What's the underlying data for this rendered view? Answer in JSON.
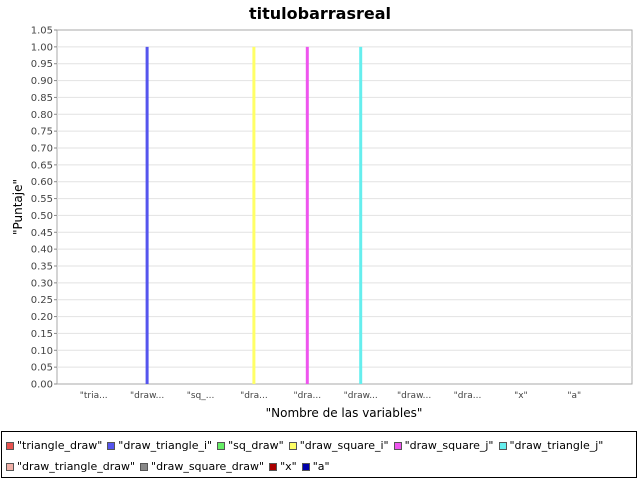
{
  "chart_data": {
    "type": "bar",
    "title": "titulobarrasreal",
    "xlabel": "\"Nombre de las variables\"",
    "ylabel": "\"Puntaje\"",
    "ylim": [
      0,
      1.05
    ],
    "ytick_step": 0.05,
    "grid": true,
    "legend_position": "bottom",
    "categories": [
      "\"tria...",
      "\"draw...",
      "\"sq_...",
      "\"dra...",
      "\"dra...",
      "\"draw...",
      "\"draw...",
      "\"dra...",
      "\"x\"",
      "\"a\""
    ],
    "series": [
      {
        "name": "\"triangle_draw\"",
        "color": "#e8524f",
        "values": [
          0,
          0,
          0,
          0,
          0,
          0,
          0,
          0,
          0,
          0
        ]
      },
      {
        "name": "\"draw_triangle_i\"",
        "color": "#5555ee",
        "values": [
          0,
          1.0,
          0,
          0,
          0,
          0,
          0,
          0,
          0,
          0
        ]
      },
      {
        "name": "\"sq_draw\"",
        "color": "#66ee66",
        "values": [
          0,
          0,
          0,
          0,
          0,
          0,
          0,
          0,
          0,
          0
        ]
      },
      {
        "name": "\"draw_square_i\"",
        "color": "#ffff66",
        "values": [
          0,
          0,
          0,
          1.0,
          0,
          0,
          0,
          0,
          0,
          0
        ]
      },
      {
        "name": "\"draw_square_j\"",
        "color": "#ee55ee",
        "values": [
          0,
          0,
          0,
          0,
          1.0,
          0,
          0,
          0,
          0,
          0
        ]
      },
      {
        "name": "\"draw_triangle_j\"",
        "color": "#66eeee",
        "values": [
          0,
          0,
          0,
          0,
          0,
          1.0,
          0,
          0,
          0,
          0
        ]
      },
      {
        "name": "\"draw_triangle_draw\"",
        "color": "#f0b0a8",
        "values": [
          0,
          0,
          0,
          0,
          0,
          0,
          0,
          0,
          0,
          0
        ]
      },
      {
        "name": "\"draw_square_draw\"",
        "color": "#888888",
        "values": [
          0,
          0,
          0,
          0,
          0,
          0,
          0,
          0,
          0,
          0
        ]
      },
      {
        "name": "\"x\"",
        "color": "#aa0000",
        "values": [
          0,
          0,
          0,
          0,
          0,
          0,
          0,
          0,
          0,
          0
        ]
      },
      {
        "name": "\"a\"",
        "color": "#0000aa",
        "values": [
          0,
          0,
          0,
          0,
          0,
          0,
          0,
          0,
          0,
          0
        ]
      }
    ]
  }
}
